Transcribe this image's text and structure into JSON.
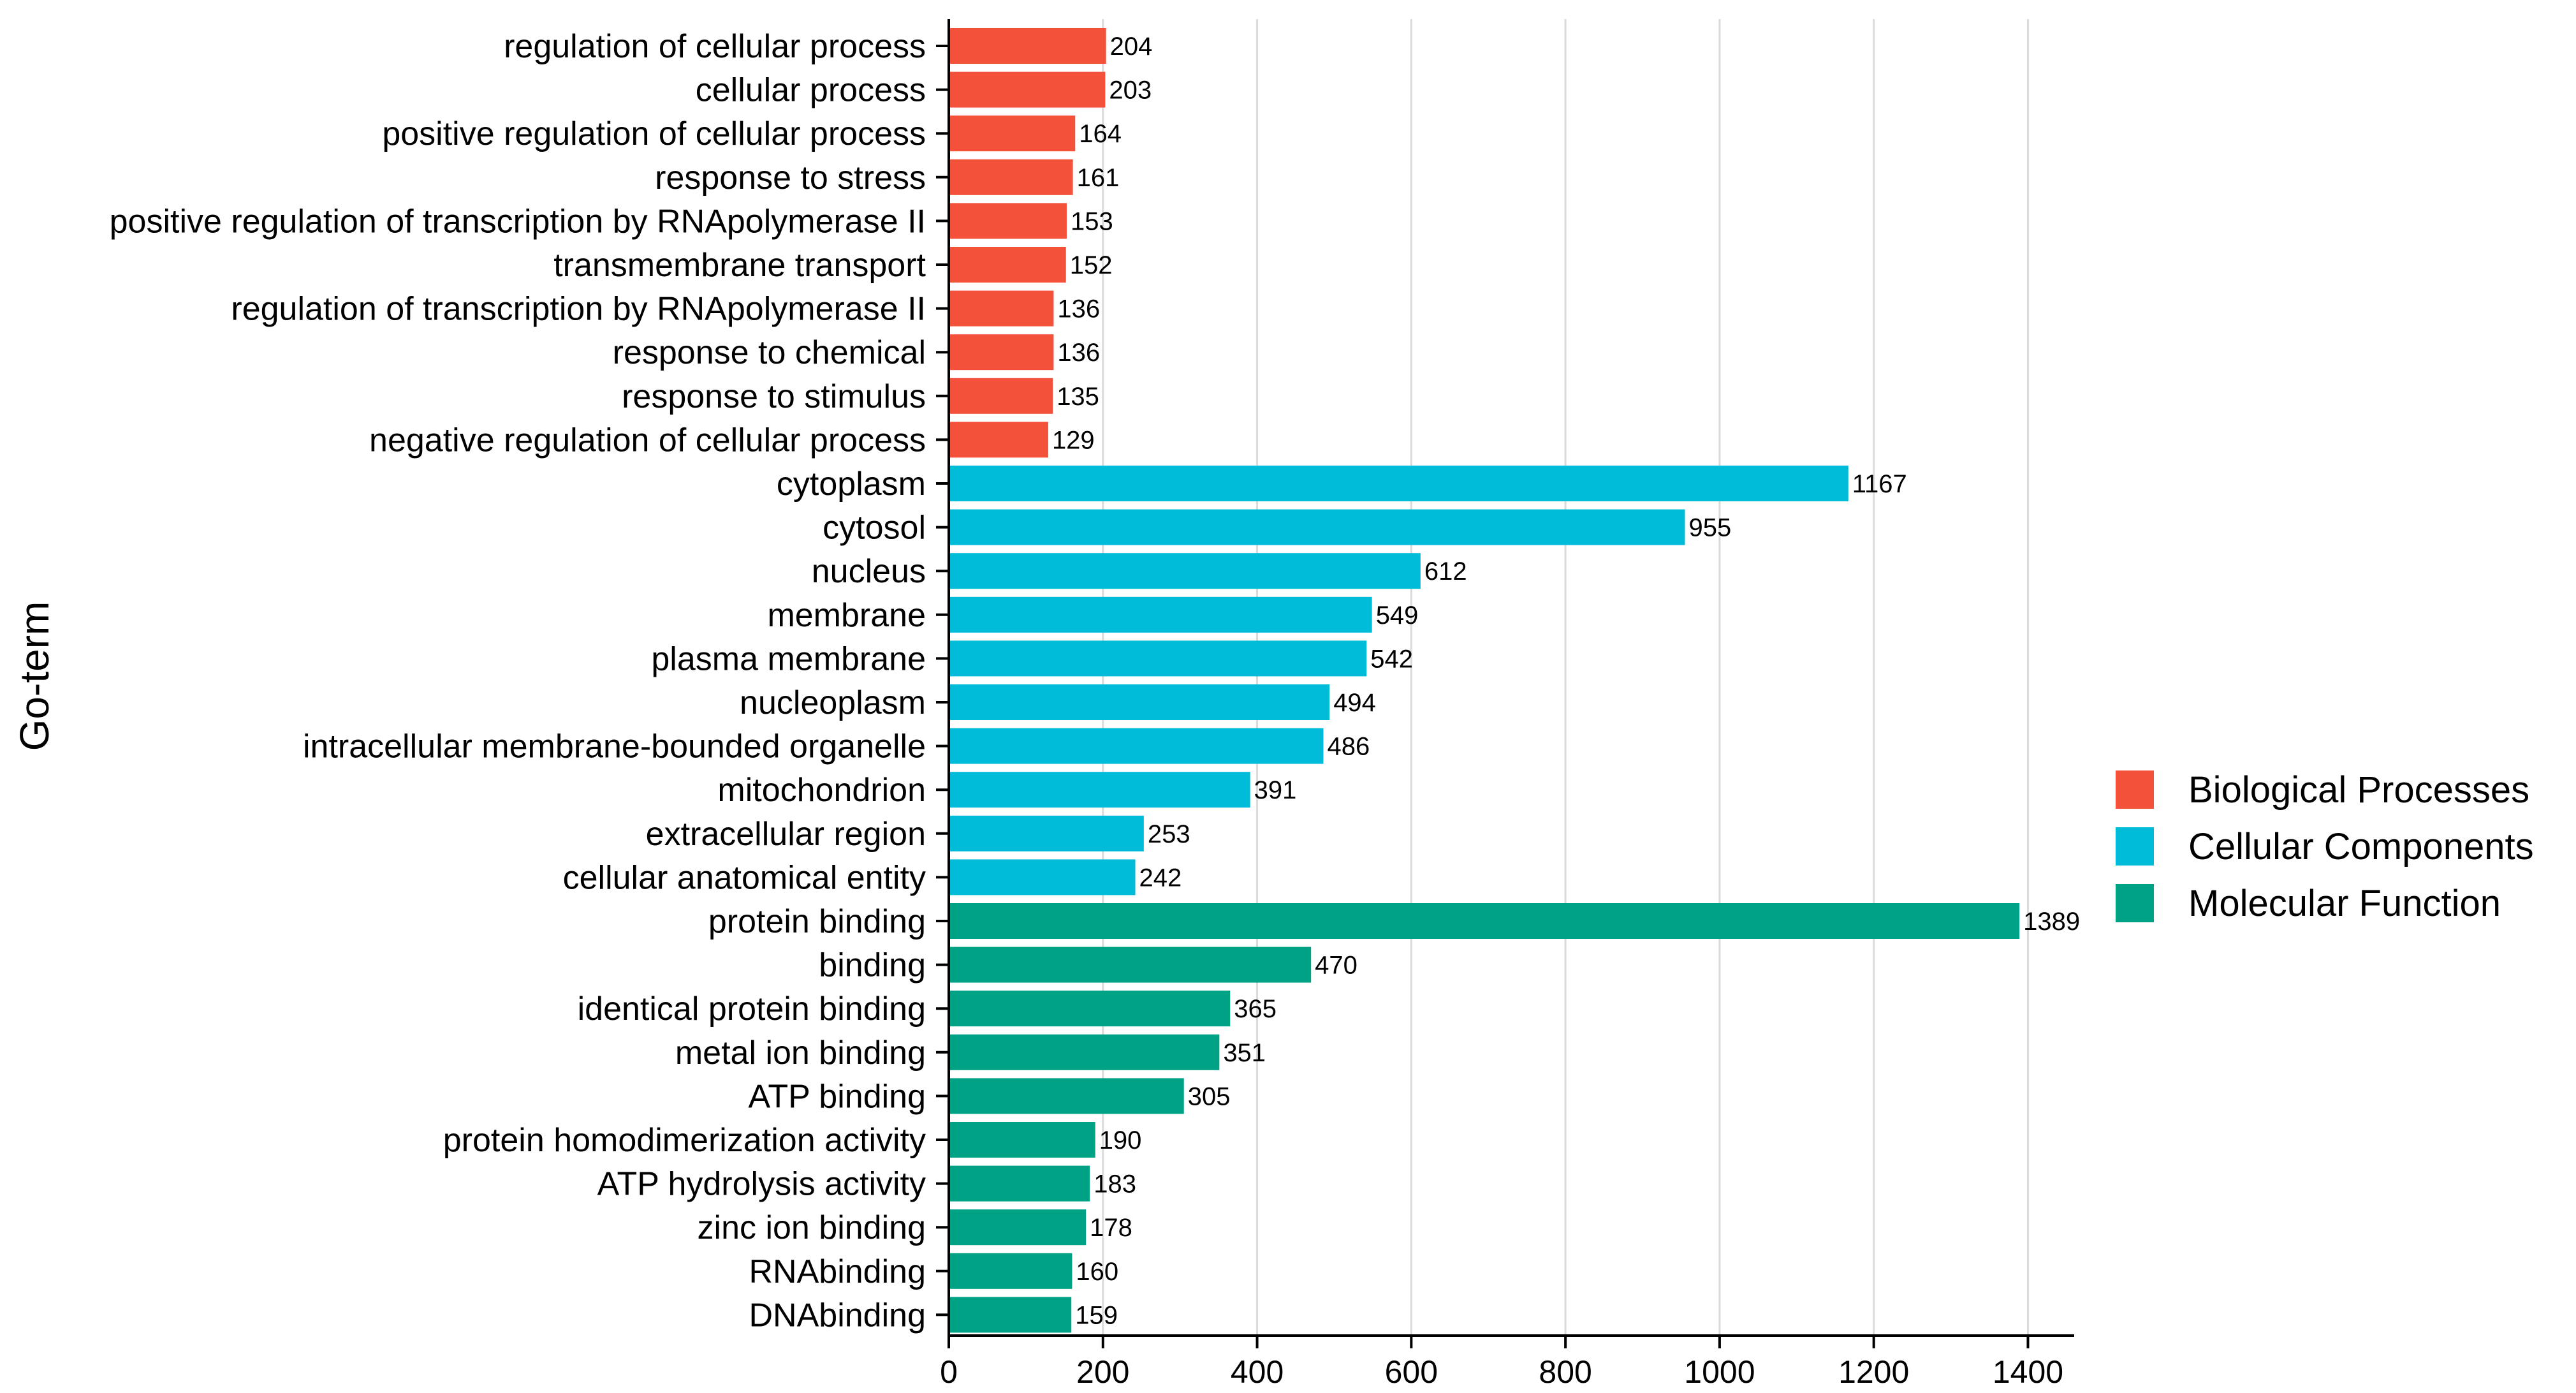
{
  "chart_data": {
    "type": "bar",
    "orientation": "horizontal",
    "ylabel": "Go-term",
    "xlabel": "",
    "xlim": [
      0,
      1460
    ],
    "xticks": [
      0,
      200,
      400,
      600,
      800,
      1000,
      1200,
      1400
    ],
    "grid": "vertical",
    "legend_position": "right",
    "legend": [
      {
        "name": "Biological Processes",
        "color": "#F4513A"
      },
      {
        "name": "Cellular Components",
        "color": "#00BCD8"
      },
      {
        "name": "Molecular Function",
        "color": "#00A286"
      }
    ],
    "categories": [
      {
        "label": "regulation of cellular process",
        "value": 204,
        "group": "Biological Processes"
      },
      {
        "label": "cellular process",
        "value": 203,
        "group": "Biological Processes"
      },
      {
        "label": "positive regulation of cellular process",
        "value": 164,
        "group": "Biological Processes"
      },
      {
        "label": "response to stress",
        "value": 161,
        "group": "Biological Processes"
      },
      {
        "label": "positive regulation of transcription by RNApolymerase II",
        "value": 153,
        "group": "Biological Processes"
      },
      {
        "label": "transmembrane transport",
        "value": 152,
        "group": "Biological Processes"
      },
      {
        "label": "regulation of transcription by RNApolymerase II",
        "value": 136,
        "group": "Biological Processes"
      },
      {
        "label": "response to chemical",
        "value": 136,
        "group": "Biological Processes"
      },
      {
        "label": "response to stimulus",
        "value": 135,
        "group": "Biological Processes"
      },
      {
        "label": "negative regulation of cellular process",
        "value": 129,
        "group": "Biological Processes"
      },
      {
        "label": "cytoplasm",
        "value": 1167,
        "group": "Cellular Components"
      },
      {
        "label": "cytosol",
        "value": 955,
        "group": "Cellular Components"
      },
      {
        "label": "nucleus",
        "value": 612,
        "group": "Cellular Components"
      },
      {
        "label": "membrane",
        "value": 549,
        "group": "Cellular Components"
      },
      {
        "label": "plasma membrane",
        "value": 542,
        "group": "Cellular Components"
      },
      {
        "label": "nucleoplasm",
        "value": 494,
        "group": "Cellular Components"
      },
      {
        "label": "intracellular membrane-bounded organelle",
        "value": 486,
        "group": "Cellular Components"
      },
      {
        "label": "mitochondrion",
        "value": 391,
        "group": "Cellular Components"
      },
      {
        "label": "extracellular region",
        "value": 253,
        "group": "Cellular Components"
      },
      {
        "label": "cellular anatomical entity",
        "value": 242,
        "group": "Cellular Components"
      },
      {
        "label": "protein binding",
        "value": 1389,
        "group": "Molecular Function"
      },
      {
        "label": "binding",
        "value": 470,
        "group": "Molecular Function"
      },
      {
        "label": "identical protein binding",
        "value": 365,
        "group": "Molecular Function"
      },
      {
        "label": "metal ion binding",
        "value": 351,
        "group": "Molecular Function"
      },
      {
        "label": "ATP binding",
        "value": 305,
        "group": "Molecular Function"
      },
      {
        "label": "protein homodimerization activity",
        "value": 190,
        "group": "Molecular Function"
      },
      {
        "label": "ATP hydrolysis activity",
        "value": 183,
        "group": "Molecular Function"
      },
      {
        "label": "zinc ion binding",
        "value": 178,
        "group": "Molecular Function"
      },
      {
        "label": "RNAbinding",
        "value": 160,
        "group": "Molecular Function"
      },
      {
        "label": "DNAbinding",
        "value": 159,
        "group": "Molecular Function"
      }
    ]
  }
}
